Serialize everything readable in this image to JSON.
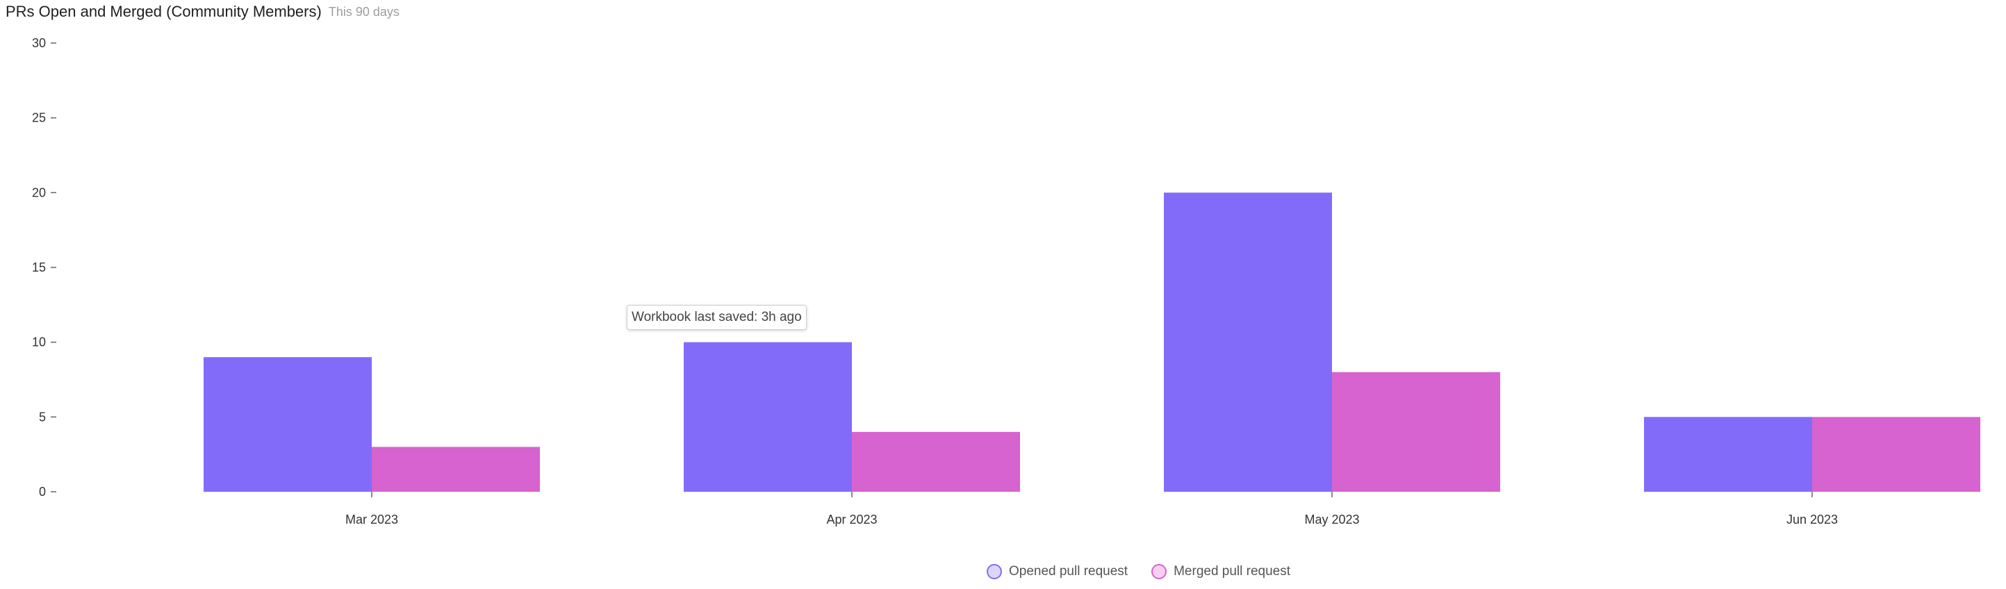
{
  "header": {
    "title": "PRs Open and Merged (Community Members)",
    "subtitle": "This 90 days"
  },
  "tooltip": {
    "text": "Workbook last saved: 3h ago"
  },
  "legend": {
    "items": [
      {
        "label": "Opened pull request",
        "color": "#836bfa",
        "fill": "#ddd6fe"
      },
      {
        "label": "Merged pull request",
        "color": "#d663cf",
        "fill": "#f9d0f2"
      }
    ]
  },
  "chart_data": {
    "type": "bar",
    "title": "PRs Open and Merged (Community Members)",
    "subtitle": "This 90 days",
    "xlabel": "",
    "ylabel": "",
    "ylim": [
      0,
      30
    ],
    "yticks": [
      0,
      5,
      10,
      15,
      20,
      25,
      30
    ],
    "categories": [
      "Mar 2023",
      "Apr 2023",
      "May 2023",
      "Jun 2023"
    ],
    "series": [
      {
        "name": "Opened pull request",
        "color": "#836bfa",
        "values": [
          9,
          10,
          20,
          5
        ]
      },
      {
        "name": "Merged pull request",
        "color": "#d663cf",
        "values": [
          3,
          4,
          8,
          5
        ]
      }
    ],
    "grid": false,
    "legend_position": "bottom"
  }
}
